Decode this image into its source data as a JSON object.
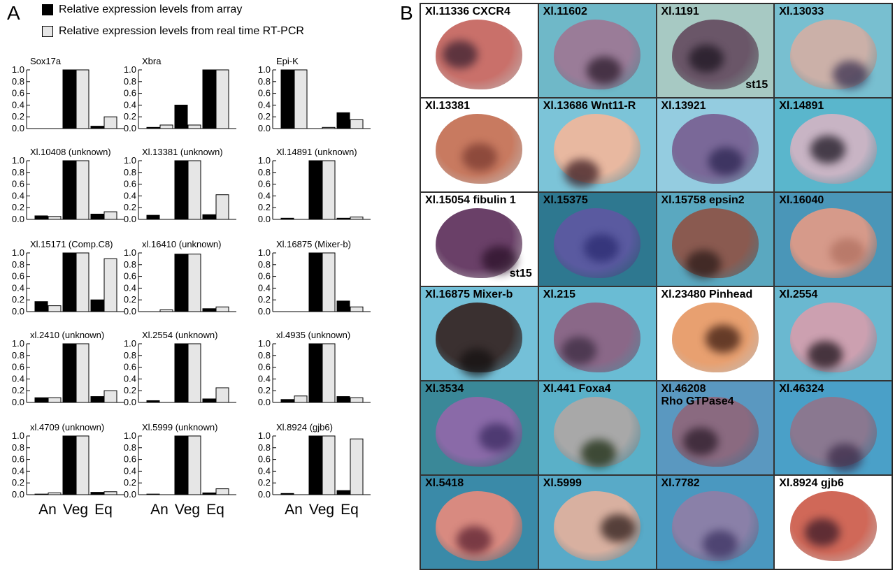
{
  "panel_a_letter": "A",
  "panel_b_letter": "B",
  "legend": [
    {
      "label": "Relative expression levels from array",
      "color": "#000000"
    },
    {
      "label": "Relative expression levels from real time RT-PCR",
      "color": "#e6e6e6"
    }
  ],
  "chart_data": [
    {
      "type": "bar",
      "title": "Sox17a",
      "categories": [
        "An",
        "Veg",
        "Eq"
      ],
      "series": [
        {
          "name": "Relative expression levels from array",
          "values": [
            0,
            1.0,
            0.04
          ]
        },
        {
          "name": "Relative expression levels from real time RT-PCR",
          "values": [
            0,
            1.0,
            0.2
          ]
        }
      ],
      "ylim": [
        0,
        1.0
      ],
      "yticks": [
        "0.0",
        "0.2",
        "0.4",
        "0.6",
        "0.8",
        "1.0"
      ]
    },
    {
      "type": "bar",
      "title": "Xbra",
      "categories": [
        "An",
        "Veg",
        "Eq"
      ],
      "series": [
        {
          "name": "Relative expression levels from array",
          "values": [
            0.02,
            0.4,
            1.0
          ]
        },
        {
          "name": "Relative expression levels from real time RT-PCR",
          "values": [
            0.06,
            0.06,
            1.0
          ]
        }
      ],
      "ylim": [
        0,
        1.0
      ],
      "yticks": [
        "0.0",
        "0.2",
        "0.4",
        "0.6",
        "0.8",
        "1.0"
      ]
    },
    {
      "type": "bar",
      "title": "Epi-K",
      "categories": [
        "An",
        "Veg",
        "Eq"
      ],
      "series": [
        {
          "name": "Relative expression levels from array",
          "values": [
            1.0,
            0,
            0.27
          ]
        },
        {
          "name": "Relative expression levels from real time RT-PCR",
          "values": [
            1.0,
            0.02,
            0.15
          ]
        }
      ],
      "ylim": [
        0,
        1.0
      ],
      "yticks": [
        "0.0",
        "0.2",
        "0.4",
        "0.6",
        "0.8",
        "1.0"
      ]
    },
    {
      "type": "bar",
      "title": "Xl.10408 (unknown)",
      "categories": [
        "An",
        "Veg",
        "Eq"
      ],
      "series": [
        {
          "name": "Relative expression levels from array",
          "values": [
            0.06,
            1.0,
            0.09
          ]
        },
        {
          "name": "Relative expression levels from real time RT-PCR",
          "values": [
            0.05,
            1.0,
            0.13
          ]
        }
      ],
      "ylim": [
        0,
        1.0
      ],
      "yticks": [
        "0.0",
        "0.2",
        "0.4",
        "0.6",
        "0.8",
        "1.0"
      ]
    },
    {
      "type": "bar",
      "title": "Xl.13381 (unknown)",
      "categories": [
        "An",
        "Veg",
        "Eq"
      ],
      "series": [
        {
          "name": "Relative expression levels from array",
          "values": [
            0.07,
            1.0,
            0.08
          ]
        },
        {
          "name": "Relative expression levels from real time RT-PCR",
          "values": [
            0,
            1.0,
            0.42
          ]
        }
      ],
      "ylim": [
        0,
        1.0
      ],
      "yticks": [
        "0.0",
        "0.2",
        "0.4",
        "0.6",
        "0.8",
        "1.0"
      ]
    },
    {
      "type": "bar",
      "title": "Xl.14891 (unknown)",
      "categories": [
        "An",
        "Veg",
        "Eq"
      ],
      "series": [
        {
          "name": "Relative expression levels from array",
          "values": [
            0.02,
            1.0,
            0.02
          ]
        },
        {
          "name": "Relative expression levels from real time RT-PCR",
          "values": [
            0,
            1.0,
            0.04
          ]
        }
      ],
      "ylim": [
        0,
        1.0
      ],
      "yticks": [
        "0.0",
        "0.2",
        "0.4",
        "0.6",
        "0.8",
        "1.0"
      ]
    },
    {
      "type": "bar",
      "title": "Xl.15171 (Comp.C8)",
      "categories": [
        "An",
        "Veg",
        "Eq"
      ],
      "series": [
        {
          "name": "Relative expression levels from array",
          "values": [
            0.17,
            1.0,
            0.2
          ]
        },
        {
          "name": "Relative expression levels from real time RT-PCR",
          "values": [
            0.1,
            1.0,
            0.9
          ]
        }
      ],
      "ylim": [
        0,
        1.0
      ],
      "yticks": [
        "0.0",
        "0.2",
        "0.4",
        "0.6",
        "0.8",
        "1.0"
      ]
    },
    {
      "type": "bar",
      "title": "xl.16410 (unknown)",
      "categories": [
        "An",
        "Veg",
        "Eq"
      ],
      "series": [
        {
          "name": "Relative expression levels from array",
          "values": [
            0,
            0.98,
            0.05
          ]
        },
        {
          "name": "Relative expression levels from real time RT-PCR",
          "values": [
            0.03,
            0.98,
            0.08
          ]
        }
      ],
      "ylim": [
        0,
        1.0
      ],
      "yticks": [
        "0.0",
        "0.2",
        "0.4",
        "0.6",
        "0.8",
        "1.0"
      ]
    },
    {
      "type": "bar",
      "title": "Xl.16875 (Mixer-b)",
      "categories": [
        "An",
        "Veg",
        "Eq"
      ],
      "series": [
        {
          "name": "Relative expression levels from array",
          "values": [
            0,
            1.0,
            0.18
          ]
        },
        {
          "name": "Relative expression levels from real time RT-PCR",
          "values": [
            0,
            1.0,
            0.08
          ]
        }
      ],
      "ylim": [
        0,
        1.0
      ],
      "yticks": [
        "0.0",
        "0.2",
        "0.4",
        "0.6",
        "0.8",
        "1.0"
      ]
    },
    {
      "type": "bar",
      "title": "xl.2410 (unknown)",
      "categories": [
        "An",
        "Veg",
        "Eq"
      ],
      "series": [
        {
          "name": "Relative expression levels from array",
          "values": [
            0.08,
            1.0,
            0.1
          ]
        },
        {
          "name": "Relative expression levels from real time RT-PCR",
          "values": [
            0.08,
            1.0,
            0.2
          ]
        }
      ],
      "ylim": [
        0,
        1.0
      ],
      "yticks": [
        "0.0",
        "0.2",
        "0.4",
        "0.6",
        "0.8",
        "1.0"
      ]
    },
    {
      "type": "bar",
      "title": "Xl.2554 (unknown)",
      "categories": [
        "An",
        "Veg",
        "Eq"
      ],
      "series": [
        {
          "name": "Relative expression levels from array",
          "values": [
            0.03,
            1.0,
            0.06
          ]
        },
        {
          "name": "Relative expression levels from real time RT-PCR",
          "values": [
            0,
            1.0,
            0.25
          ]
        }
      ],
      "ylim": [
        0,
        1.0
      ],
      "yticks": [
        "0.0",
        "0.2",
        "0.4",
        "0.6",
        "0.8",
        "1.0"
      ]
    },
    {
      "type": "bar",
      "title": "xl.4935 (unknown)",
      "categories": [
        "An",
        "Veg",
        "Eq"
      ],
      "series": [
        {
          "name": "Relative expression levels from array",
          "values": [
            0.05,
            1.0,
            0.1
          ]
        },
        {
          "name": "Relative expression levels from real time RT-PCR",
          "values": [
            0.11,
            1.0,
            0.08
          ]
        }
      ],
      "ylim": [
        0,
        1.0
      ],
      "yticks": [
        "0.0",
        "0.2",
        "0.4",
        "0.6",
        "0.8",
        "1.0"
      ]
    },
    {
      "type": "bar",
      "title": "xl.4709 (unknown)",
      "categories": [
        "An",
        "Veg",
        "Eq"
      ],
      "series": [
        {
          "name": "Relative expression levels from array",
          "values": [
            0.01,
            1.0,
            0.04
          ]
        },
        {
          "name": "Relative expression levels from real time RT-PCR",
          "values": [
            0.03,
            1.0,
            0.05
          ]
        }
      ],
      "ylim": [
        0,
        1.0
      ],
      "yticks": [
        "0.0",
        "0.2",
        "0.4",
        "0.6",
        "0.8",
        "1.0"
      ]
    },
    {
      "type": "bar",
      "title": "Xl.5999 (unknown)",
      "categories": [
        "An",
        "Veg",
        "Eq"
      ],
      "series": [
        {
          "name": "Relative expression levels from array",
          "values": [
            0.01,
            1.0,
            0.03
          ]
        },
        {
          "name": "Relative expression levels from real time RT-PCR",
          "values": [
            0,
            1.0,
            0.1
          ]
        }
      ],
      "ylim": [
        0,
        1.0
      ],
      "yticks": [
        "0.0",
        "0.2",
        "0.4",
        "0.6",
        "0.8",
        "1.0"
      ]
    },
    {
      "type": "bar",
      "title": "Xl.8924 (gjb6)",
      "categories": [
        "An",
        "Veg",
        "Eq"
      ],
      "series": [
        {
          "name": "Relative expression levels from array",
          "values": [
            0.02,
            1.0,
            0.07
          ]
        },
        {
          "name": "Relative expression levels from real time RT-PCR",
          "values": [
            0,
            1.0,
            0.95
          ]
        }
      ],
      "ylim": [
        0,
        1.0
      ],
      "yticks": [
        "0.0",
        "0.2",
        "0.4",
        "0.6",
        "0.8",
        "1.0"
      ]
    }
  ],
  "panel_b": [
    {
      "label": "Xl.11336 CXCR4",
      "bg": "#ffffff",
      "embryo": "#c9706a",
      "stain": "#3a2030"
    },
    {
      "label": "Xl.11602",
      "bg": "#6fb8c8",
      "embryo": "#9a7c98",
      "stain": "#2a1a2a"
    },
    {
      "label": "Xl.1191",
      "stage": "st15",
      "bg": "#a7c9c3",
      "embryo": "#6a5668",
      "stain": "#1c1420"
    },
    {
      "label": "Xl.13033",
      "bg": "#78bfd0",
      "embryo": "#cbb0a8",
      "stain": "#3a3050"
    },
    {
      "label": "Xl.13381",
      "bg": "#ffffff",
      "embryo": "#c87a60",
      "stain": "#7a3a30"
    },
    {
      "label": "Xl.13686 Wnt11-R",
      "bg": "#7cc4d8",
      "embryo": "#e8b8a0",
      "stain": "#3a1a20"
    },
    {
      "label": "Xl.13921",
      "bg": "#94cce0",
      "embryo": "#7a6898",
      "stain": "#2a2450"
    },
    {
      "label": "Xl.14891",
      "bg": "#5ab6cc",
      "embryo": "#c8b4c4",
      "stain": "#1a1420"
    },
    {
      "label": "Xl.15054 fibulin 1",
      "stage": "st15",
      "bg": "#ffffff",
      "embryo": "#6a4068",
      "stain": "#2a1028"
    },
    {
      "label": "Xl.15375",
      "bg": "#2e7890",
      "embryo": "#5a5aa0",
      "stain": "#2a2a70"
    },
    {
      "label": "Xl.15758 epsin2",
      "bg": "#5aa8c0",
      "embryo": "#8a5a50",
      "stain": "#2a1a18"
    },
    {
      "label": "Xl.16040",
      "bg": "#4a96b8",
      "embryo": "#d69a8a",
      "stain": "#b07060"
    },
    {
      "label": "Xl.16875 Mixer-b",
      "bg": "#74c0d8",
      "embryo": "#3a3030",
      "stain": "#141010"
    },
    {
      "label": "Xl.215",
      "bg": "#6abcd4",
      "embryo": "#8a6888",
      "stain": "#3a2a40"
    },
    {
      "label": "Xl.23480 Pinhead",
      "bg": "#ffffff",
      "embryo": "#e8a070",
      "stain": "#3a1a10"
    },
    {
      "label": "Xl.2554",
      "bg": "#6ab8d0",
      "embryo": "#cca0b0",
      "stain": "#1a1018"
    },
    {
      "label": "Xl.3534",
      "bg": "#3a8898",
      "embryo": "#8a6aa8",
      "stain": "#3a2a60"
    },
    {
      "label": "Xl.441 Foxa4",
      "bg": "#5ab0c8",
      "embryo": "#a8a8a8",
      "stain": "#1a2a10"
    },
    {
      "label": "Xl.46208",
      "label2": "Rho GTPase4",
      "bg": "#5a98c0",
      "embryo": "#8a6a80",
      "stain": "#2a1a28"
    },
    {
      "label": "Xl.46324",
      "bg": "#4aa0c8",
      "embryo": "#8a7890",
      "stain": "#3a2a48"
    },
    {
      "label": "Xl.5418",
      "bg": "#3a8aa8",
      "embryo": "#d88a80",
      "stain": "#5a2030"
    },
    {
      "label": "Xl.5999",
      "bg": "#58aac8",
      "embryo": "#d8b0a0",
      "stain": "#2a1a18"
    },
    {
      "label": "Xl.7782",
      "bg": "#4a98c0",
      "embryo": "#8a80a8",
      "stain": "#3a3060"
    },
    {
      "label": "Xl.8924 gjb6",
      "bg": "#ffffff",
      "embryo": "#d06858",
      "stain": "#3a1a28"
    }
  ]
}
